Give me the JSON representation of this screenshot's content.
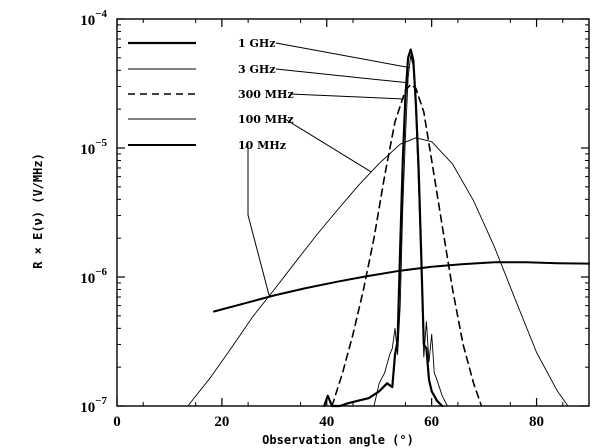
{
  "chart_data": {
    "type": "line",
    "title": "",
    "xlabel": "Observation angle (°)",
    "ylabel": "R × E(ν) (V/MHz)",
    "xlim": [
      0,
      90
    ],
    "ylim": [
      1e-07,
      0.0001
    ],
    "yscale": "log",
    "x_ticks": [
      0,
      20,
      40,
      60,
      80
    ],
    "x_tick_labels": [
      "0",
      "20",
      "40",
      "60",
      "80"
    ],
    "y_ticks": [
      1e-07,
      1e-06,
      1e-05,
      0.0001
    ],
    "y_tick_labels": [
      {
        "base": "10",
        "exp": "−7"
      },
      {
        "base": "10",
        "exp": "−6"
      },
      {
        "base": "10",
        "exp": "−5"
      },
      {
        "base": "10",
        "exp": "−4"
      }
    ],
    "legend_position": "top-left",
    "series": [
      {
        "name": "1 GHz",
        "style": "thick",
        "x": [
          39.5,
          40.2,
          41.0,
          42.5,
          44.0,
          46.0,
          48.0,
          50.0,
          51.5,
          52.5,
          53.0,
          53.5,
          54.0,
          54.5,
          55.0,
          55.5,
          56.0,
          56.5,
          57.0,
          57.5,
          58.0,
          58.5,
          59.0,
          59.5,
          60.0,
          60.5,
          61.0,
          61.5,
          62.0
        ],
        "y": [
          1e-07,
          1.2e-07,
          1e-07,
          1e-07,
          1.05e-07,
          1.1e-07,
          1.15e-07,
          1.3e-07,
          1.5e-07,
          1.4e-07,
          2.5e-07,
          3.2e-07,
          1.7e-06,
          8e-06,
          2.5e-05,
          5e-05,
          5.8e-05,
          4.8e-05,
          2.2e-05,
          7e-06,
          1.5e-06,
          3e-07,
          2.8e-07,
          1.6e-07,
          1.3e-07,
          1.2e-07,
          1.1e-07,
          1.05e-07,
          1e-07
        ]
      },
      {
        "name": "3 GHz",
        "style": "thin",
        "x": [
          49.0,
          50.0,
          51.0,
          52.0,
          52.5,
          53.0,
          53.5,
          54.0,
          54.5,
          55.0,
          55.5,
          56.0,
          56.5,
          57.0,
          57.5,
          58.0,
          58.5,
          59.0,
          59.5,
          60.0,
          60.5,
          61.0,
          62.0,
          63.0
        ],
        "y": [
          1e-07,
          1.5e-07,
          1.8e-07,
          2.5e-07,
          2.8e-07,
          4e-07,
          2.5e-07,
          6e-07,
          3.5e-06,
          1.2e-05,
          3.5e-05,
          5.2e-05,
          4.3e-05,
          1.8e-05,
          5e-06,
          1.2e-06,
          2.4e-07,
          4.5e-07,
          2.2e-07,
          3.6e-07,
          1.8e-07,
          1.6e-07,
          1.2e-07,
          1e-07
        ]
      },
      {
        "name": "300 MHz",
        "style": "dashed",
        "x": [
          41.0,
          43.0,
          45.0,
          47.0,
          49.0,
          51.0,
          53.0,
          55.0,
          56.0,
          57.0,
          58.5,
          60.0,
          62.0,
          64.0,
          66.0,
          68.0,
          69.5
        ],
        "y": [
          1e-07,
          1.8e-07,
          3.6e-07,
          8e-07,
          2e-06,
          6e-06,
          1.6e-05,
          2.8e-05,
          3.1e-05,
          2.9e-05,
          1.9e-05,
          8e-06,
          2.5e-06,
          8e-07,
          3e-07,
          1.5e-07,
          1e-07
        ]
      },
      {
        "name": "100 MHz",
        "style": "thin",
        "x": [
          13.5,
          18.0,
          22.0,
          26.0,
          30.0,
          34.0,
          38.0,
          42.0,
          46.0,
          50.0,
          54.0,
          57.0,
          60.0,
          64.0,
          68.0,
          72.0,
          76.0,
          80.0,
          84.0,
          86.0
        ],
        "y": [
          1e-07,
          1.7e-07,
          2.9e-07,
          5e-07,
          8e-07,
          1.3e-06,
          2.1e-06,
          3.3e-06,
          5.1e-06,
          7.6e-06,
          1.07e-05,
          1.2e-05,
          1.12e-05,
          7.5e-06,
          3.9e-06,
          1.7e-06,
          6.6e-07,
          2.6e-07,
          1.3e-07,
          1e-07
        ]
      },
      {
        "name": "10 MHz",
        "style": "thick-smooth",
        "x": [
          18.5,
          24.0,
          30.0,
          36.0,
          42.0,
          48.0,
          54.0,
          60.0,
          66.0,
          72.0,
          78.0,
          84.0,
          90.0
        ],
        "y": [
          5.4e-07,
          6.2e-07,
          7.2e-07,
          8.2e-07,
          9.2e-07,
          1.02e-06,
          1.12e-06,
          1.2e-06,
          1.26e-06,
          1.3e-06,
          1.3e-06,
          1.28e-06,
          1.27e-06
        ]
      }
    ]
  }
}
